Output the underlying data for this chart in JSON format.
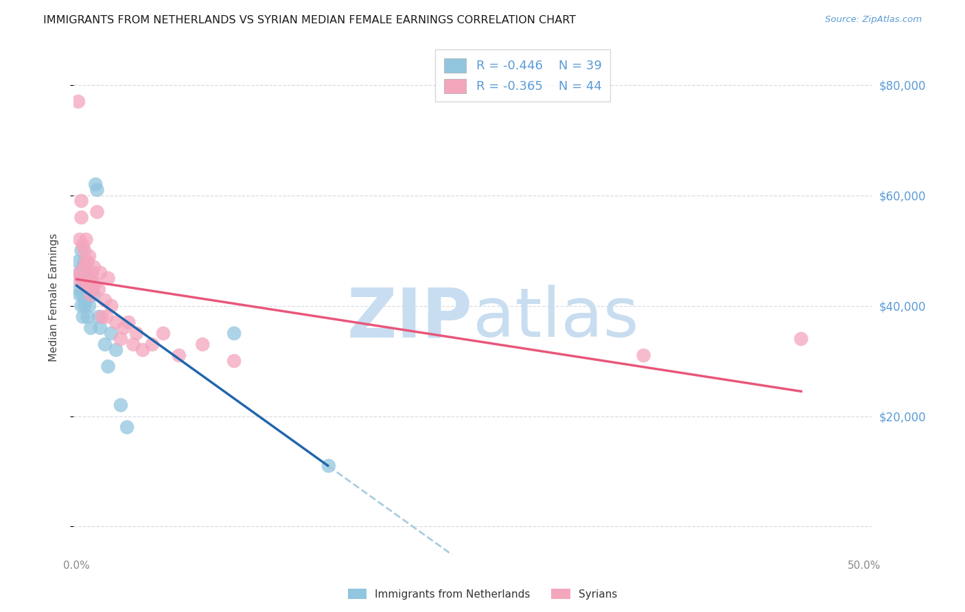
{
  "title": "IMMIGRANTS FROM NETHERLANDS VS SYRIAN MEDIAN FEMALE EARNINGS CORRELATION CHART",
  "source": "Source: ZipAtlas.com",
  "ylabel": "Median Female Earnings",
  "yticks": [
    0,
    20000,
    40000,
    60000,
    80000
  ],
  "ytick_labels": [
    "",
    "$20,000",
    "$40,000",
    "$60,000",
    "$80,000"
  ],
  "ylim": [
    -5000,
    88000
  ],
  "xlim": [
    -0.002,
    0.505
  ],
  "legend1_r": "-0.446",
  "legend1_n": "39",
  "legend2_r": "-0.365",
  "legend2_n": "44",
  "blue_color": "#92C5DE",
  "pink_color": "#F4A6BD",
  "trendline_blue": "#2166AC",
  "trendline_pink": "#E8567A",
  "trendline_dashed_color": "#AACCE0",
  "label_color": "#5B9BD5",
  "background_color": "#ffffff",
  "grid_color": "#DADCE0",
  "nl_x": [
    0.001,
    0.001,
    0.002,
    0.002,
    0.003,
    0.003,
    0.003,
    0.004,
    0.004,
    0.004,
    0.004,
    0.005,
    0.005,
    0.005,
    0.005,
    0.006,
    0.006,
    0.006,
    0.007,
    0.007,
    0.007,
    0.008,
    0.008,
    0.009,
    0.009,
    0.01,
    0.011,
    0.012,
    0.013,
    0.014,
    0.015,
    0.018,
    0.02,
    0.022,
    0.025,
    0.028,
    0.032,
    0.1,
    0.16
  ],
  "nl_y": [
    48000,
    43000,
    46000,
    42000,
    50000,
    45000,
    40000,
    47000,
    44000,
    42000,
    38000,
    48000,
    45000,
    43000,
    40000,
    46000,
    44000,
    41000,
    45000,
    43000,
    38000,
    44000,
    40000,
    43000,
    36000,
    44000,
    42000,
    62000,
    61000,
    38000,
    36000,
    33000,
    29000,
    35000,
    32000,
    22000,
    18000,
    35000,
    11000
  ],
  "sy_x": [
    0.001,
    0.001,
    0.002,
    0.002,
    0.003,
    0.003,
    0.004,
    0.004,
    0.005,
    0.005,
    0.006,
    0.006,
    0.007,
    0.007,
    0.008,
    0.008,
    0.009,
    0.009,
    0.01,
    0.01,
    0.011,
    0.012,
    0.013,
    0.014,
    0.015,
    0.016,
    0.018,
    0.019,
    0.02,
    0.022,
    0.025,
    0.028,
    0.03,
    0.033,
    0.036,
    0.038,
    0.042,
    0.048,
    0.055,
    0.065,
    0.08,
    0.1,
    0.36,
    0.46
  ],
  "sy_y": [
    77000,
    45000,
    52000,
    46000,
    59000,
    56000,
    51000,
    44000,
    50000,
    47000,
    52000,
    48000,
    48000,
    44000,
    49000,
    44000,
    45000,
    42000,
    46000,
    43000,
    47000,
    44000,
    57000,
    43000,
    46000,
    38000,
    41000,
    38000,
    45000,
    40000,
    37000,
    34000,
    36000,
    37000,
    33000,
    35000,
    32000,
    33000,
    35000,
    31000,
    33000,
    30000,
    31000,
    34000
  ]
}
